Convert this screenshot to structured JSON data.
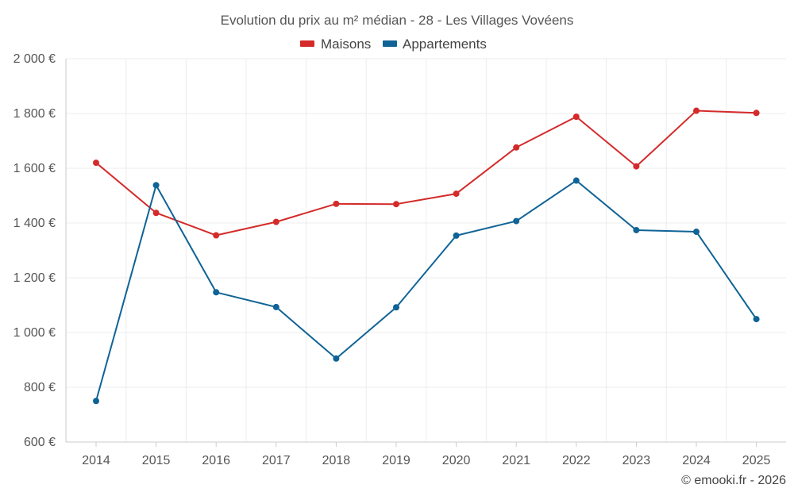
{
  "chart_data": {
    "type": "line",
    "title": "Evolution du prix au m² médian - 28 - Les Villages Vovéens",
    "categories": [
      "2014",
      "2015",
      "2016",
      "2017",
      "2018",
      "2019",
      "2020",
      "2021",
      "2022",
      "2023",
      "2024",
      "2025"
    ],
    "series": [
      {
        "name": "Maisons",
        "color": "#d42a2a",
        "values": [
          1620,
          1437,
          1355,
          1404,
          1470,
          1469,
          1507,
          1676,
          1788,
          1607,
          1810,
          1802
        ]
      },
      {
        "name": "Appartements",
        "color": "#0f6396",
        "values": [
          750,
          1538,
          1147,
          1093,
          905,
          1092,
          1354,
          1407,
          1555,
          1374,
          1368,
          1049
        ]
      }
    ],
    "ylim": [
      600,
      2000
    ],
    "yticks": [
      600,
      800,
      1000,
      1200,
      1400,
      1600,
      1800,
      2000
    ],
    "ytick_labels": [
      "600 €",
      "800 €",
      "1 000 €",
      "1 200 €",
      "1 400 €",
      "1 600 €",
      "1 800 €",
      "2 000 €"
    ],
    "grid": true,
    "legend_position": "top-center",
    "xlabel": "",
    "ylabel": ""
  },
  "credit": "© emooki.fr - 2026"
}
